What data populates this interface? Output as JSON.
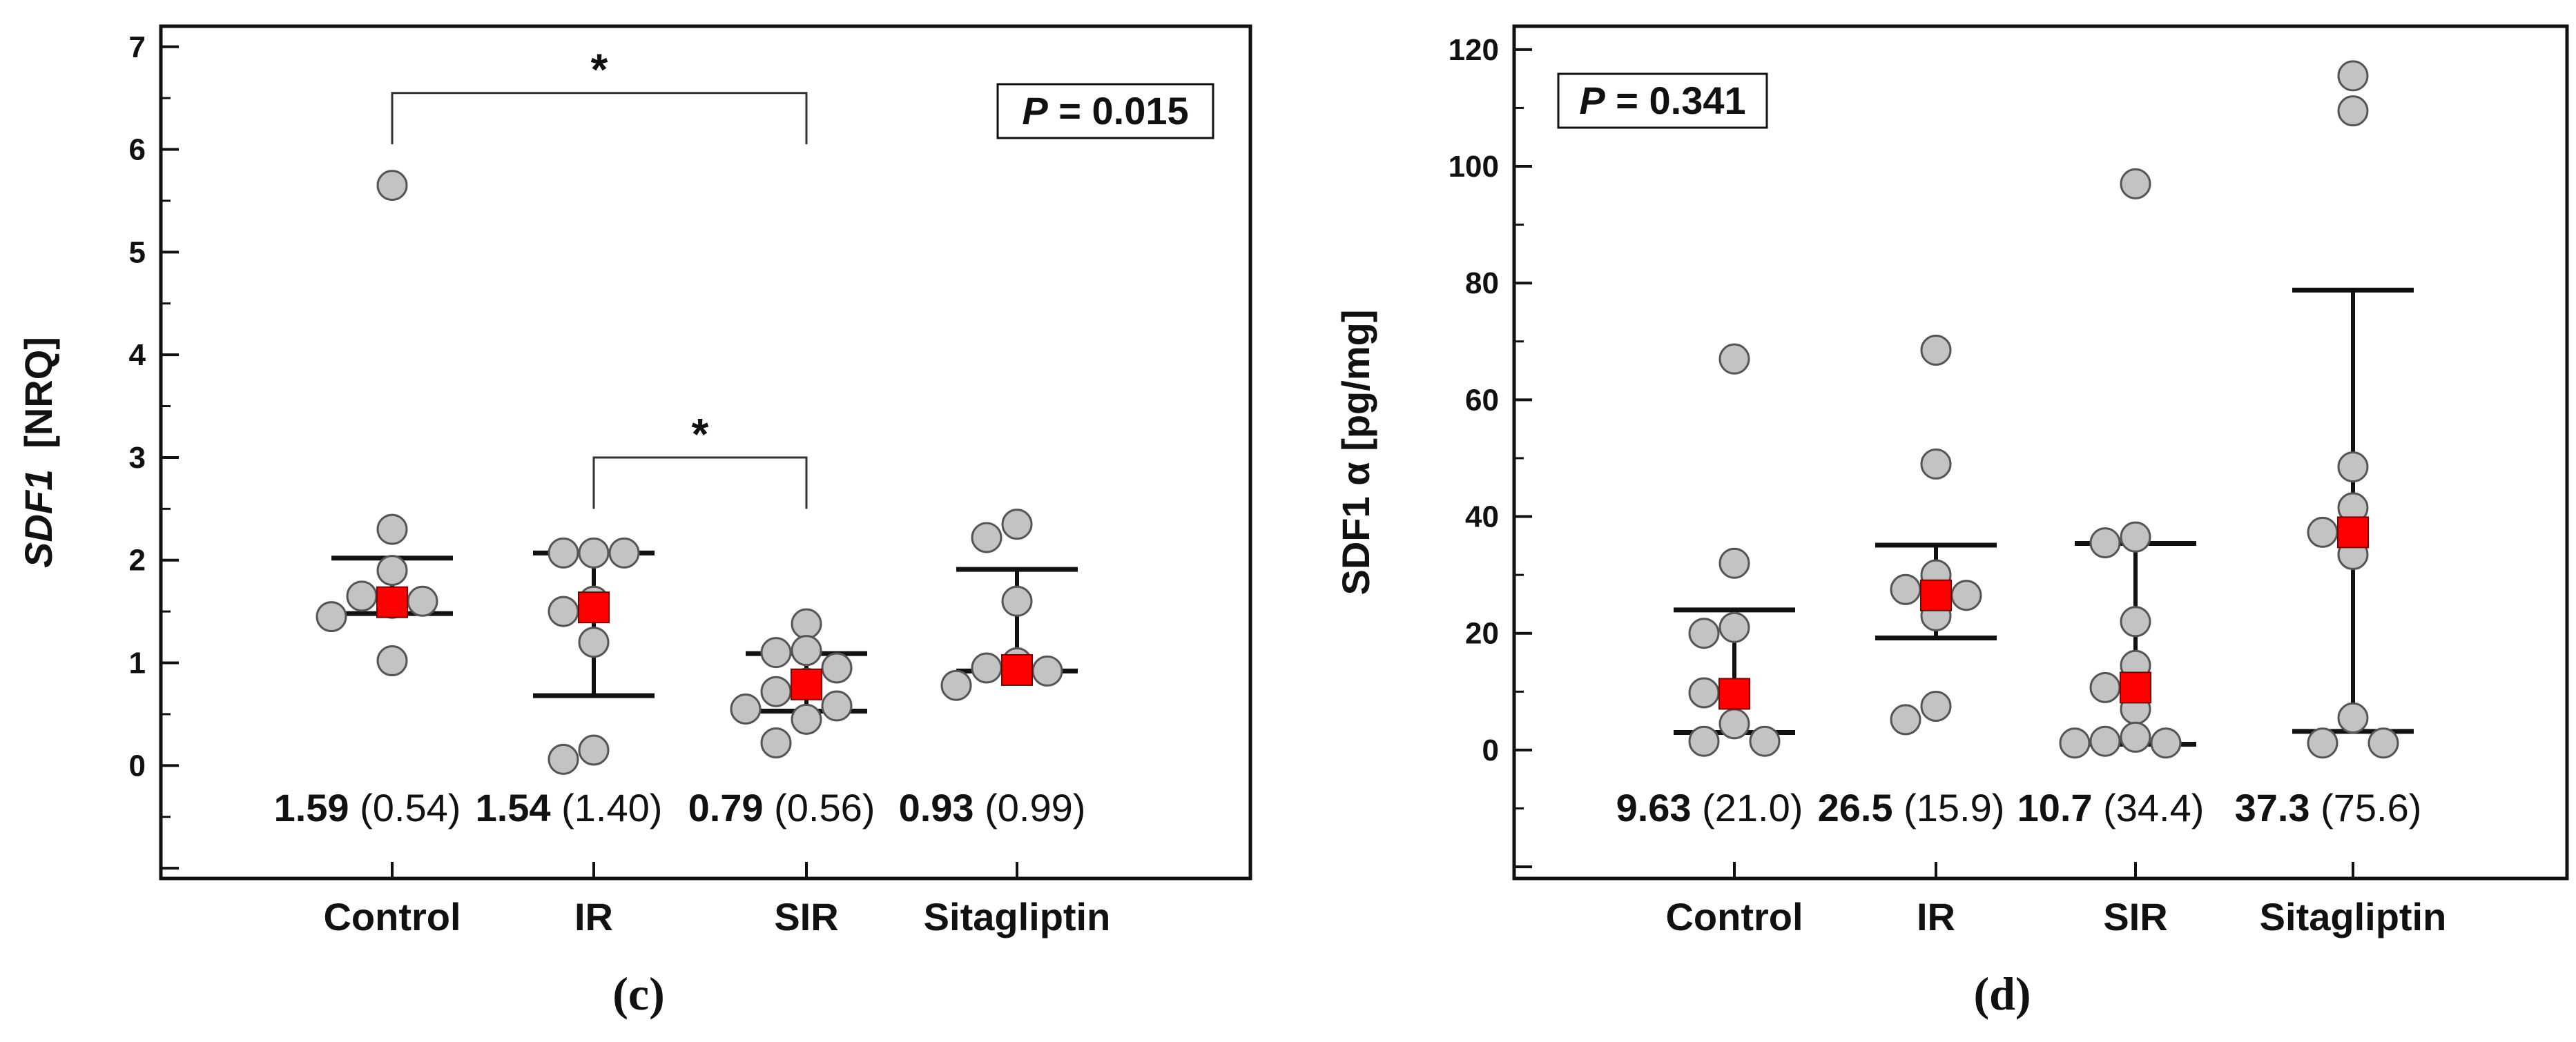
{
  "chart_data": [
    {
      "type": "scatter",
      "panel_label": "(c)",
      "ylabel": {
        "italic": "SDF1",
        "unit": "[NRQ]"
      },
      "ylim": [
        -1.1,
        7.2
      ],
      "yticks": [
        0,
        1,
        2,
        3,
        4,
        5,
        6,
        7
      ],
      "categories": [
        "Control",
        "IR",
        "SIR",
        "Sitagliptin"
      ],
      "p_value": {
        "label": "P",
        "text": " = 0.015"
      },
      "groups": [
        {
          "name": "Control",
          "points": [
            5.65,
            2.3,
            1.9,
            1.65,
            1.58,
            1.6,
            1.45,
            1.02
          ],
          "median": 1.59,
          "q1": 1.48,
          "q3": 2.02,
          "annotation_bold": "1.59",
          "annotation_rest": " (0.54)"
        },
        {
          "name": "IR",
          "points": [
            2.07,
            2.07,
            2.07,
            1.6,
            1.5,
            1.2,
            0.15,
            0.06
          ],
          "median": 1.54,
          "q1": 0.68,
          "q3": 2.07,
          "annotation_bold": "1.54",
          "annotation_rest": " (1.40)"
        },
        {
          "name": "SIR",
          "points": [
            1.38,
            1.12,
            1.1,
            0.95,
            0.8,
            0.72,
            0.58,
            0.55,
            0.45,
            0.22
          ],
          "median": 0.79,
          "q1": 0.53,
          "q3": 1.09,
          "annotation_bold": "0.79",
          "annotation_rest": " (0.56)"
        },
        {
          "name": "Sitagliptin",
          "points": [
            2.35,
            2.22,
            1.6,
            1.0,
            0.95,
            0.92,
            0.78
          ],
          "median": 0.93,
          "q1": 0.92,
          "q3": 1.91,
          "annotation_bold": "0.93",
          "annotation_rest": " (0.99)"
        }
      ],
      "significance": [
        {
          "from": "Control",
          "to": "SIR",
          "y": 6.55,
          "label": "*"
        },
        {
          "from": "IR",
          "to": "SIR",
          "y": 3.0,
          "label": "*"
        }
      ]
    },
    {
      "type": "scatter",
      "panel_label": "(d)",
      "ylabel": {
        "italic": "",
        "unit": "SDF1 α  [pg/mg]"
      },
      "ylim": [
        -22,
        124
      ],
      "yticks": [
        0,
        20,
        40,
        60,
        80,
        100,
        120
      ],
      "categories": [
        "Control",
        "IR",
        "SIR",
        "Sitagliptin"
      ],
      "p_value": {
        "label": "P",
        "text": " = 0.341"
      },
      "groups": [
        {
          "name": "Control",
          "points": [
            67,
            32,
            21,
            20,
            9.6,
            9.8,
            4.5,
            1.5,
            1.5
          ],
          "median": 9.63,
          "q1": 3.0,
          "q3": 24.0,
          "annotation_bold": "9.63",
          "annotation_rest": " (21.0)"
        },
        {
          "name": "IR",
          "points": [
            68.5,
            49,
            30,
            27.5,
            26.5,
            23,
            7.5,
            5.2
          ],
          "median": 26.5,
          "q1": 19.2,
          "q3": 35.1,
          "annotation_bold": "26.5",
          "annotation_rest": " (15.9)"
        },
        {
          "name": "SIR",
          "points": [
            97,
            36.5,
            35.5,
            22,
            14.5,
            10.7,
            7,
            2.2,
            1.5,
            1.2,
            1.2
          ],
          "median": 10.7,
          "q1": 1.0,
          "q3": 35.4,
          "annotation_bold": "10.7",
          "annotation_rest": " (34.4)"
        },
        {
          "name": "Sitagliptin",
          "points": [
            115.5,
            109.5,
            48.5,
            41.5,
            37.3,
            33.5,
            5.5,
            1.2,
            1.2
          ],
          "median": 37.3,
          "q1": 3.2,
          "q3": 78.8,
          "annotation_bold": "37.3",
          "annotation_rest": " (75.6)"
        }
      ],
      "significance": []
    }
  ],
  "colors": {
    "point_fill": "#c3c3c3",
    "point_stroke": "#555555",
    "median_fill": "#ff0000",
    "axis": "#111111"
  }
}
